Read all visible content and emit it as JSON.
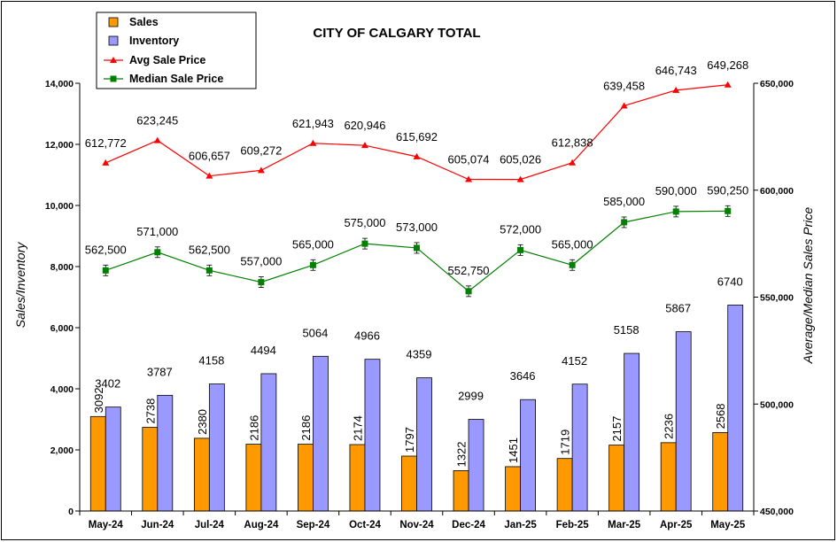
{
  "chart_data": {
    "type": "bar",
    "title": "CITY OF CALGARY TOTAL",
    "ylabel": "Sales/Inventory",
    "y2label": "Average/Median Sales Price",
    "ylim": [
      0,
      14000
    ],
    "y2lim": [
      450000,
      650000
    ],
    "yticks": [
      "0",
      "2,000",
      "4,000",
      "6,000",
      "8,000",
      "10,000",
      "12,000",
      "14,000"
    ],
    "y2ticks": [
      "450,000",
      "500,000",
      "550,000",
      "600,000",
      "650,000"
    ],
    "categories": [
      "May-24",
      "Jun-24",
      "Jul-24",
      "Aug-24",
      "Sep-24",
      "Oct-24",
      "Nov-24",
      "Dec-24",
      "Jan-25",
      "Feb-25",
      "Mar-25",
      "Apr-25",
      "May-25"
    ],
    "series": [
      {
        "name": "Sales",
        "type": "bar",
        "axis": "left",
        "color": "#FF9900",
        "values": [
          3092,
          2738,
          2380,
          2186,
          2186,
          2174,
          1797,
          1322,
          1451,
          1719,
          2157,
          2236,
          2568
        ],
        "labels": [
          "3092",
          "2738",
          "2380",
          "2186",
          "2186",
          "2174",
          "1797",
          "1322",
          "1451",
          "1719",
          "2157",
          "2236",
          "2568"
        ]
      },
      {
        "name": "Inventory",
        "type": "bar",
        "axis": "left",
        "color": "#9999FF",
        "values": [
          3402,
          3787,
          4158,
          4494,
          5064,
          4966,
          4359,
          2999,
          3646,
          4152,
          5158,
          5867,
          6740
        ],
        "labels": [
          "3402",
          "3787",
          "4158",
          "4494",
          "5064",
          "4966",
          "4359",
          "2999",
          "3646",
          "4152",
          "5158",
          "5867",
          "6740"
        ]
      },
      {
        "name": "Avg Sale Price",
        "type": "line",
        "axis": "right",
        "color": "#FF0000",
        "marker": "triangle",
        "values": [
          612772,
          623245,
          606657,
          609272,
          621943,
          620946,
          615692,
          605074,
          605026,
          612838,
          639458,
          646743,
          649268
        ],
        "labels": [
          "612,772",
          "623,245",
          "606,657",
          "609,272",
          "621,943",
          "620,946",
          "615,692",
          "605,074",
          "605,026",
          "612,838",
          "639,458",
          "646,743",
          "649,268"
        ]
      },
      {
        "name": "Median Sale Price",
        "type": "line",
        "axis": "right",
        "color": "#008000",
        "marker": "square",
        "values": [
          562500,
          571000,
          562500,
          557000,
          565000,
          575000,
          573000,
          552750,
          572000,
          565000,
          585000,
          590000,
          590250
        ],
        "labels": [
          "562,500",
          "571,000",
          "562,500",
          "557,000",
          "565,000",
          "575,000",
          "573,000",
          "552,750",
          "572,000",
          "565,000",
          "585,000",
          "590,000",
          "590,250"
        ]
      }
    ],
    "legend": "top-left",
    "grid": false
  }
}
